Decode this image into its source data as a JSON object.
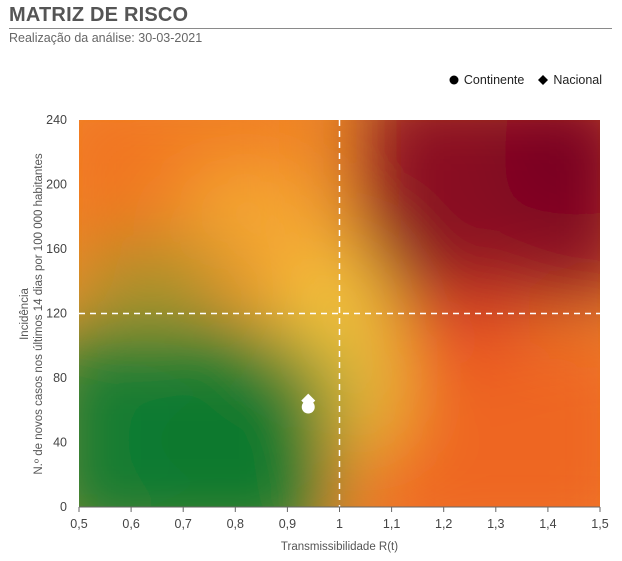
{
  "header": {
    "title": "MATRIZ DE RISCO",
    "subtitle": "Realização da análise: 30-03-2021"
  },
  "legend": {
    "continente": "Continente",
    "nacional": "Nacional"
  },
  "chart_data": {
    "type": "scatter",
    "background": "risk-gradient-heatmap",
    "xlabel": "Transmissibilidade R(t)",
    "ylabel_line1": "Incidência",
    "ylabel_line2": "N.º de novos casos nos últimos 14 dias por 100 000 habitantes",
    "xlim": [
      0.5,
      1.5
    ],
    "ylim": [
      0,
      240
    ],
    "x_ticks": [
      "0,5",
      "0,6",
      "0,7",
      "0,8",
      "0,9",
      "1",
      "1,1",
      "1,2",
      "1,3",
      "1,4",
      "1,5"
    ],
    "y_ticks": [
      "0",
      "40",
      "80",
      "120",
      "160",
      "200",
      "240"
    ],
    "thresholds": {
      "x": 1.0,
      "y": 120
    },
    "series": [
      {
        "name": "Continente",
        "marker": "circle",
        "x": 0.94,
        "y": 62
      },
      {
        "name": "Nacional",
        "marker": "diamond",
        "x": 0.94,
        "y": 66
      }
    ],
    "colors": {
      "low": "#0f7a35",
      "mid": "#f4b63c",
      "high": "#7a0020",
      "orange": "#f2761f",
      "marker": "#ffffff"
    }
  }
}
